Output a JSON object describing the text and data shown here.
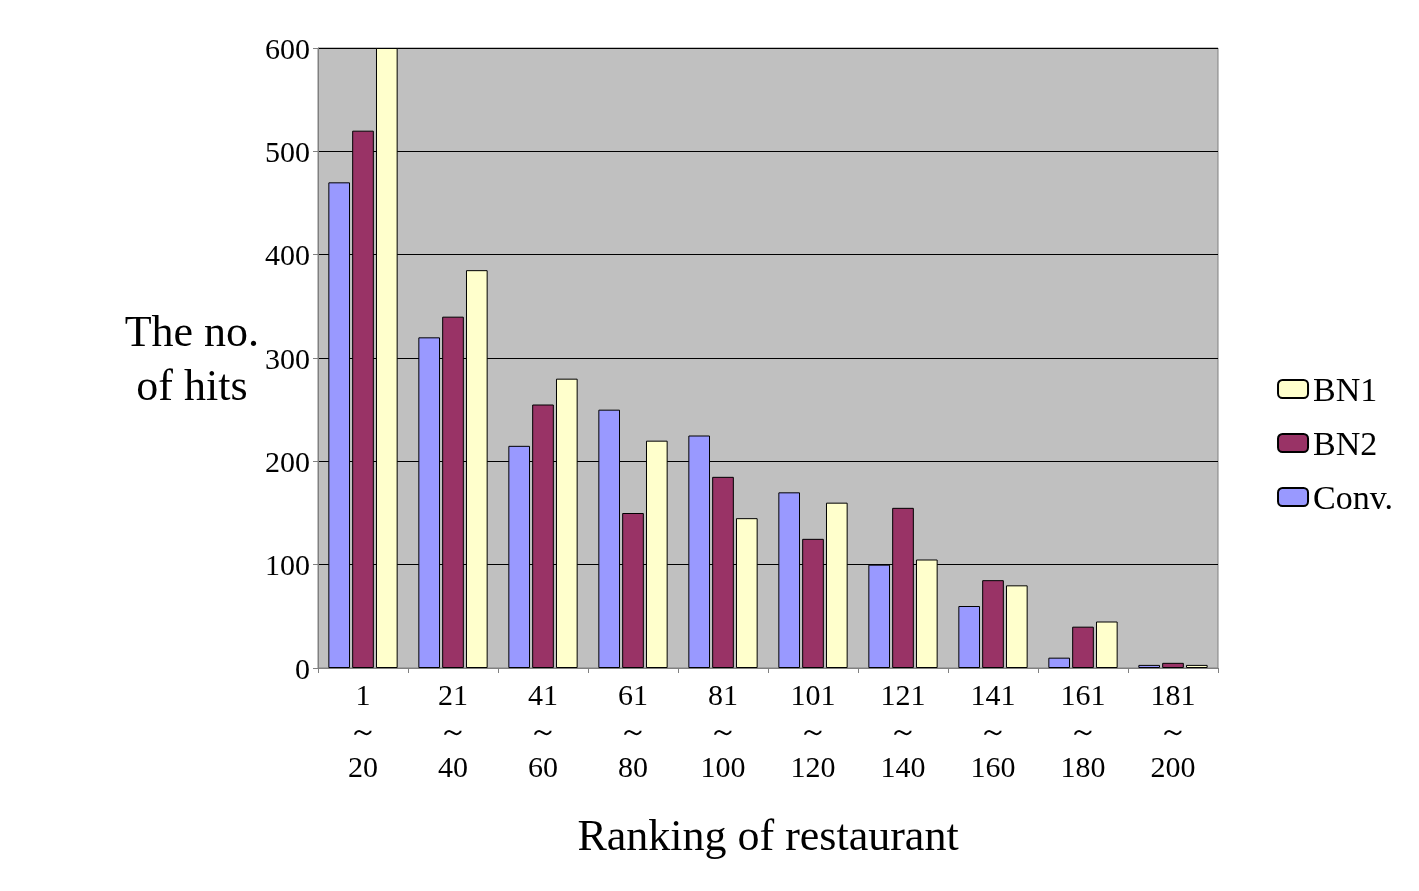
{
  "chart_data": {
    "type": "bar",
    "xlabel": "Ranking of restaurant",
    "ylabel": "The no.\nof hits",
    "categories": [
      "1～20",
      "21～40",
      "41～60",
      "61～80",
      "81～100",
      "101～120",
      "121～140",
      "141～160",
      "161～180",
      "181～200"
    ],
    "series": [
      {
        "name": "Conv.",
        "color": "#9999ff",
        "values": [
          470,
          320,
          215,
          250,
          225,
          170,
          100,
          60,
          10,
          3
        ]
      },
      {
        "name": "BN2",
        "color": "#993366",
        "values": [
          520,
          340,
          255,
          150,
          185,
          125,
          155,
          85,
          40,
          5
        ]
      },
      {
        "name": "BN1",
        "color": "#ffffcc",
        "values": [
          600,
          385,
          280,
          220,
          145,
          160,
          105,
          80,
          45,
          3
        ]
      }
    ],
    "ylim": [
      0,
      600
    ],
    "yticks": [
      0,
      100,
      200,
      300,
      400,
      500,
      600
    ],
    "grid": "y",
    "legend": "right"
  }
}
